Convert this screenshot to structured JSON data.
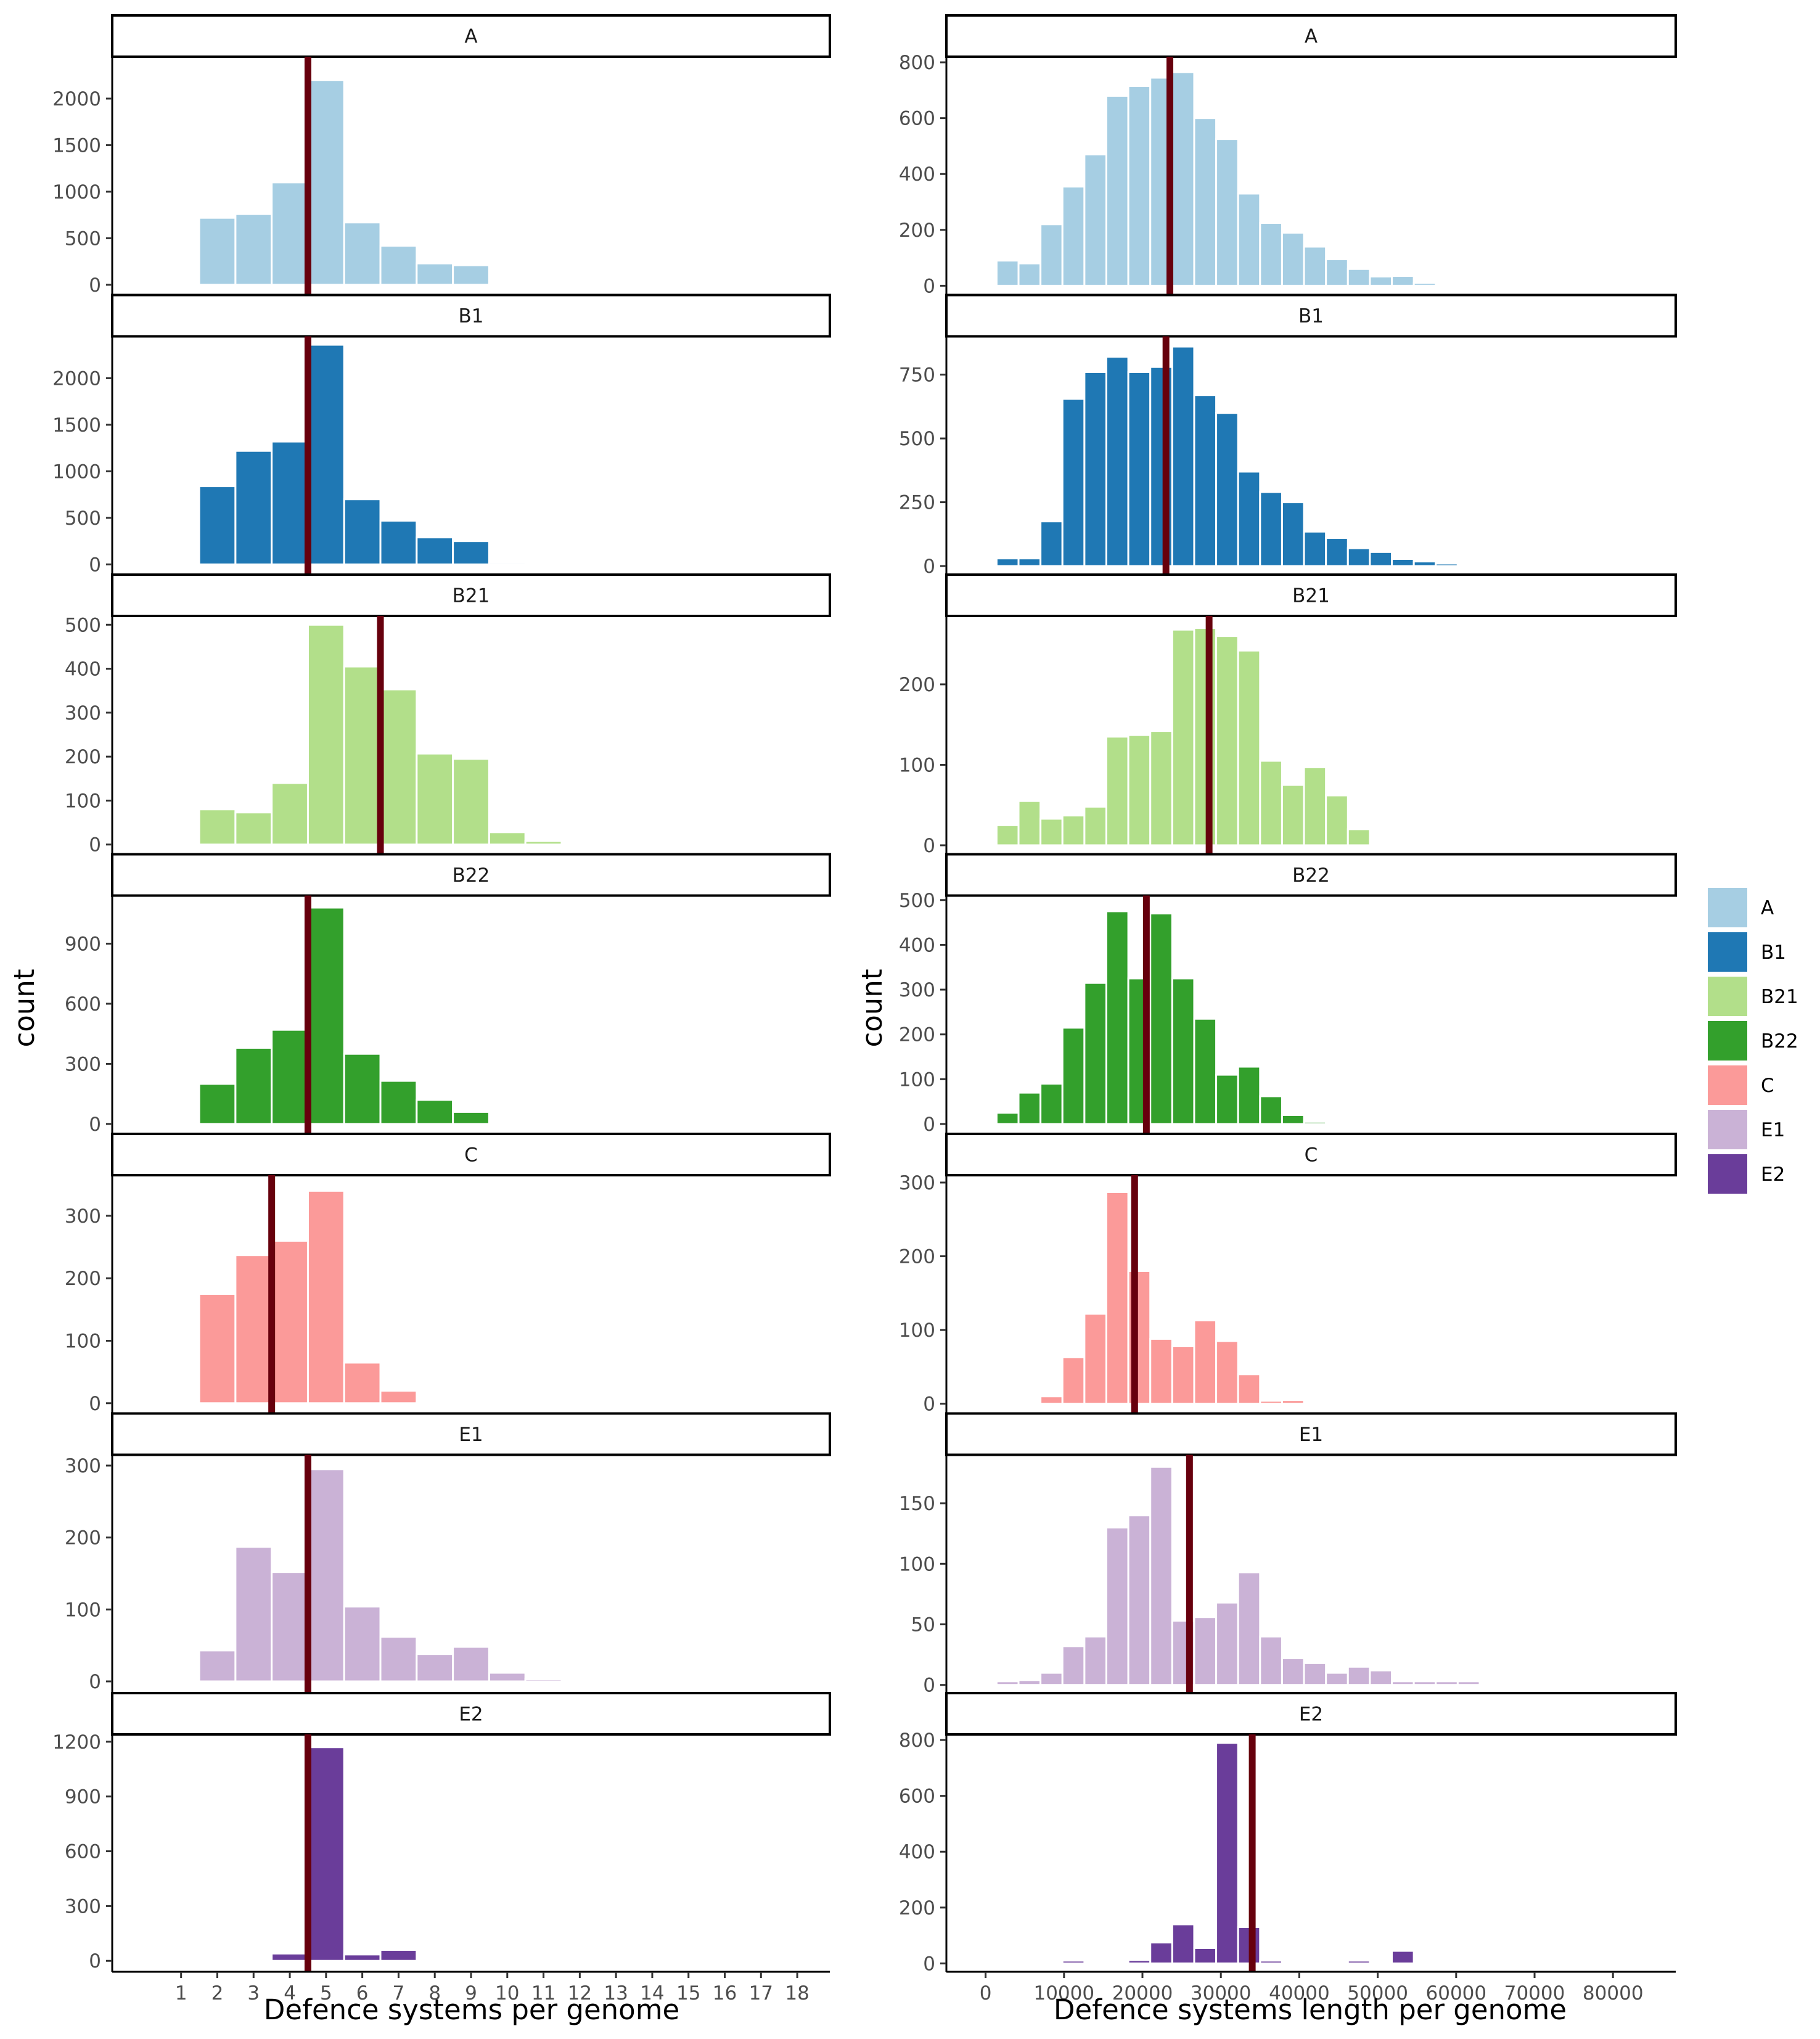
{
  "chart_data": [
    {
      "type": "bar",
      "column": "left",
      "xlabel": "Defence systems per genome",
      "ylabel": "count",
      "x_ticks": [
        1,
        2,
        3,
        4,
        5,
        6,
        7,
        8,
        9,
        10,
        11,
        12,
        13,
        14,
        15,
        16,
        17,
        18
      ],
      "xlim": [
        -0.9,
        18.9
      ],
      "bin_width": 1,
      "panels": [
        {
          "group": "A",
          "color": "#A6CEE3",
          "x": [
            1,
            2,
            3,
            4,
            5,
            6,
            7,
            8,
            9,
            10,
            11,
            12
          ],
          "values": [
            12,
            720,
            760,
            1100,
            2200,
            670,
            420,
            230,
            210,
            10,
            0,
            0
          ],
          "mean": 4.5,
          "ylim": [
            -100,
            2450
          ],
          "y_ticks": [
            0,
            500,
            1000,
            1500,
            2000
          ]
        },
        {
          "group": "B1",
          "color": "#1F78B4",
          "x": [
            1,
            2,
            3,
            4,
            5,
            6,
            7,
            8,
            9,
            10,
            11,
            12
          ],
          "values": [
            0,
            840,
            1220,
            1320,
            2360,
            700,
            470,
            290,
            250,
            20,
            0,
            0
          ],
          "mean": 4.5,
          "ylim": [
            -100,
            2450
          ],
          "y_ticks": [
            0,
            500,
            1000,
            1500,
            2000
          ]
        },
        {
          "group": "B21",
          "color": "#B2DF8A",
          "x": [
            1,
            2,
            3,
            4,
            5,
            6,
            7,
            8,
            9,
            10,
            11,
            12,
            13
          ],
          "values": [
            3,
            80,
            73,
            140,
            500,
            405,
            353,
            207,
            195,
            28,
            8,
            0,
            0
          ],
          "mean": 6.5,
          "ylim": [
            -20,
            520
          ],
          "y_ticks": [
            0,
            100,
            200,
            300,
            400,
            500
          ]
        },
        {
          "group": "B22",
          "color": "#33A02C",
          "x": [
            1,
            2,
            3,
            4,
            5,
            6,
            7,
            8,
            9,
            10,
            11,
            12
          ],
          "values": [
            0,
            200,
            380,
            470,
            1080,
            350,
            215,
            120,
            60,
            0,
            0,
            0
          ],
          "mean": 4.5,
          "ylim": [
            -45,
            1140
          ],
          "y_ticks": [
            0,
            300,
            600,
            900
          ]
        },
        {
          "group": "C",
          "color": "#FB9A99",
          "x": [
            1,
            2,
            3,
            4,
            5,
            6,
            7,
            8,
            9,
            10,
            11,
            12
          ],
          "values": [
            0,
            175,
            237,
            260,
            340,
            65,
            20,
            2,
            0,
            0,
            0,
            0
          ],
          "mean": 3.5,
          "ylim": [
            -15,
            365
          ],
          "y_ticks": [
            0,
            100,
            200,
            300
          ]
        },
        {
          "group": "E1",
          "color": "#CAB2D6",
          "x": [
            1,
            2,
            3,
            4,
            5,
            6,
            7,
            8,
            9,
            10,
            11,
            12,
            13,
            14
          ],
          "values": [
            0,
            43,
            187,
            152,
            295,
            104,
            62,
            38,
            48,
            12,
            3,
            2,
            0,
            0
          ],
          "mean": 4.5,
          "ylim": [
            -15,
            315
          ],
          "y_ticks": [
            0,
            100,
            200,
            300
          ]
        },
        {
          "group": "E2",
          "color": "#6A3D9A",
          "x": [
            1,
            2,
            3,
            4,
            5,
            6,
            7,
            8,
            9,
            10,
            11,
            12
          ],
          "values": [
            0,
            0,
            0,
            40,
            1170,
            35,
            60,
            0,
            0,
            0,
            0,
            0
          ],
          "mean": 4.5,
          "ylim": [
            -60,
            1240
          ],
          "y_ticks": [
            0,
            300,
            600,
            900,
            1200
          ]
        }
      ]
    },
    {
      "type": "bar",
      "column": "right",
      "xlabel": "Defence systems length per genome",
      "ylabel": "count",
      "x_ticks": [
        0,
        10000,
        20000,
        30000,
        40000,
        50000,
        60000,
        70000,
        80000
      ],
      "xlim": [
        -5000,
        88000
      ],
      "bin_width": 2800,
      "panels": [
        {
          "group": "A",
          "color": "#A6CEE3",
          "x": [
            2800,
            5600,
            8400,
            11200,
            14000,
            16800,
            19600,
            22400,
            25200,
            28000,
            30800,
            33600,
            36400,
            39200,
            42000,
            44800,
            47600,
            50400,
            53200,
            56000,
            58800,
            61600
          ],
          "values": [
            90,
            80,
            220,
            355,
            470,
            680,
            715,
            745,
            765,
            600,
            525,
            330,
            225,
            190,
            140,
            95,
            60,
            33,
            35,
            10,
            0,
            3
          ],
          "mean": 23500,
          "ylim": [
            -30,
            820
          ],
          "y_ticks": [
            0,
            200,
            400,
            600,
            800
          ]
        },
        {
          "group": "B1",
          "color": "#1F78B4",
          "x": [
            2800,
            5600,
            8400,
            11200,
            14000,
            16800,
            19600,
            22400,
            25200,
            28000,
            30800,
            33600,
            36400,
            39200,
            42000,
            44800,
            47600,
            50400,
            53200,
            56000,
            58800,
            61600
          ],
          "values": [
            30,
            30,
            175,
            655,
            760,
            820,
            760,
            780,
            860,
            670,
            600,
            370,
            290,
            250,
            135,
            110,
            70,
            55,
            28,
            18,
            10,
            3
          ],
          "mean": 23000,
          "ylim": [
            -30,
            900
          ],
          "y_ticks": [
            0,
            250,
            500,
            750
          ]
        },
        {
          "group": "B21",
          "color": "#B2DF8A",
          "x": [
            2800,
            5600,
            8400,
            11200,
            14000,
            16800,
            19600,
            22400,
            25200,
            28000,
            30800,
            33600,
            36400,
            39200,
            42000,
            44800,
            47600,
            50400
          ],
          "values": [
            25,
            55,
            33,
            37,
            48,
            135,
            137,
            142,
            268,
            270,
            260,
            242,
            105,
            75,
            97,
            62,
            20,
            0
          ],
          "mean": 28500,
          "ylim": [
            -10,
            285
          ],
          "y_ticks": [
            0,
            100,
            200
          ]
        },
        {
          "group": "B22",
          "color": "#33A02C",
          "x": [
            2800,
            5600,
            8400,
            11200,
            14000,
            16800,
            19600,
            22400,
            25200,
            28000,
            30800,
            33600,
            36400,
            39200,
            42000,
            44800,
            47600
          ],
          "values": [
            25,
            70,
            90,
            215,
            315,
            475,
            325,
            470,
            325,
            235,
            110,
            128,
            62,
            20,
            5,
            4,
            4
          ],
          "mean": 20500,
          "ylim": [
            -20,
            510
          ],
          "y_ticks": [
            0,
            100,
            200,
            300,
            400,
            500
          ]
        },
        {
          "group": "C",
          "color": "#FB9A99",
          "x": [
            8400,
            11200,
            14000,
            16800,
            19600,
            22400,
            25200,
            28000,
            30800,
            33600,
            36400,
            39200
          ],
          "values": [
            10,
            63,
            122,
            287,
            180,
            88,
            78,
            113,
            85,
            40,
            4,
            5
          ],
          "mean": 19000,
          "ylim": [
            -12,
            310
          ],
          "y_ticks": [
            0,
            100,
            200,
            300
          ]
        },
        {
          "group": "E1",
          "color": "#CAB2D6",
          "x": [
            2800,
            5600,
            8400,
            11200,
            14000,
            16800,
            19600,
            22400,
            25200,
            28000,
            30800,
            33600,
            36400,
            39200,
            42000,
            44800,
            47600,
            50400,
            53200,
            56000,
            58800,
            61600,
            64400
          ],
          "values": [
            3,
            4,
            10,
            32,
            40,
            130,
            140,
            180,
            53,
            56,
            68,
            93,
            40,
            22,
            18,
            10,
            15,
            12,
            3,
            3,
            3,
            3,
            1
          ],
          "mean": 26000,
          "ylim": [
            -6,
            190
          ],
          "y_ticks": [
            0,
            50,
            100,
            150
          ]
        },
        {
          "group": "E2",
          "color": "#6A3D9A",
          "x": [
            11200,
            14000,
            16800,
            19600,
            22400,
            25200,
            28000,
            30800,
            33600,
            36400,
            39200,
            42000,
            44800,
            47600,
            50400,
            53200
          ],
          "values": [
            10,
            0,
            0,
            12,
            75,
            140,
            55,
            790,
            130,
            10,
            5,
            0,
            0,
            10,
            0,
            45
          ],
          "mean": 34000,
          "ylim": [
            -30,
            820
          ],
          "y_ticks": [
            0,
            200,
            400,
            600,
            800
          ]
        }
      ]
    }
  ],
  "legend": {
    "position": "right",
    "items": [
      {
        "label": "A",
        "color": "#A6CEE3"
      },
      {
        "label": "B1",
        "color": "#1F78B4"
      },
      {
        "label": "B21",
        "color": "#B2DF8A"
      },
      {
        "label": "B22",
        "color": "#33A02C"
      },
      {
        "label": "C",
        "color": "#FB9A99"
      },
      {
        "label": "E1",
        "color": "#CAB2D6"
      },
      {
        "label": "E2",
        "color": "#6A3D9A"
      }
    ]
  },
  "mean_line_color": "#67000D"
}
